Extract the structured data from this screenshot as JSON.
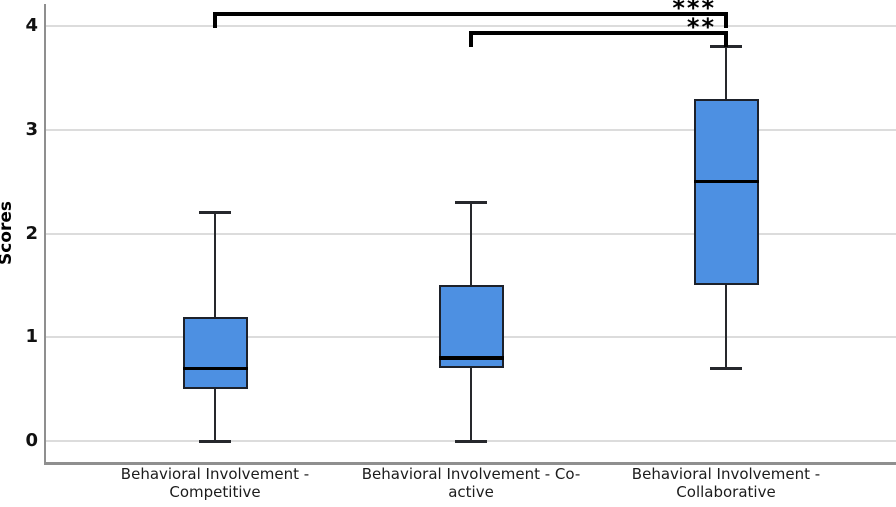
{
  "chart_data": {
    "type": "boxplot",
    "title": "",
    "xlabel": "",
    "ylabel": "Scores",
    "ylim": [
      0,
      4
    ],
    "yticks": [
      "0",
      "1",
      "2",
      "3",
      "4"
    ],
    "grid": "horizontal",
    "legend": "none",
    "categories": [
      {
        "label_lines": [
          "Behavioral Involvement -",
          "Competitive"
        ],
        "min": 0,
        "q1": 0.5,
        "median": 0.7,
        "q3": 1.2,
        "max": 2.2
      },
      {
        "label_lines": [
          "Behavioral Involvement - Co-",
          "active"
        ],
        "min": 0,
        "q1": 0.7,
        "median": 0.8,
        "q3": 1.5,
        "max": 2.3
      },
      {
        "label_lines": [
          "Behavioral Involvement -",
          "Collaborative"
        ],
        "min": 0.7,
        "q1": 1.5,
        "median": 2.5,
        "q3": 3.3,
        "max": 3.8
      }
    ],
    "significance": [
      {
        "from": 0,
        "to": 2,
        "label": "***"
      },
      {
        "from": 1,
        "to": 2,
        "label": "**"
      }
    ],
    "colors": {
      "box_fill": "#4d90e2",
      "box_border": "#1d212a",
      "median": "#000000",
      "whisker": "#26282c",
      "gridline": "#dcdcdc",
      "axis": "#8f8f8f",
      "bracket": "#000000",
      "background": "#ffffff"
    }
  }
}
